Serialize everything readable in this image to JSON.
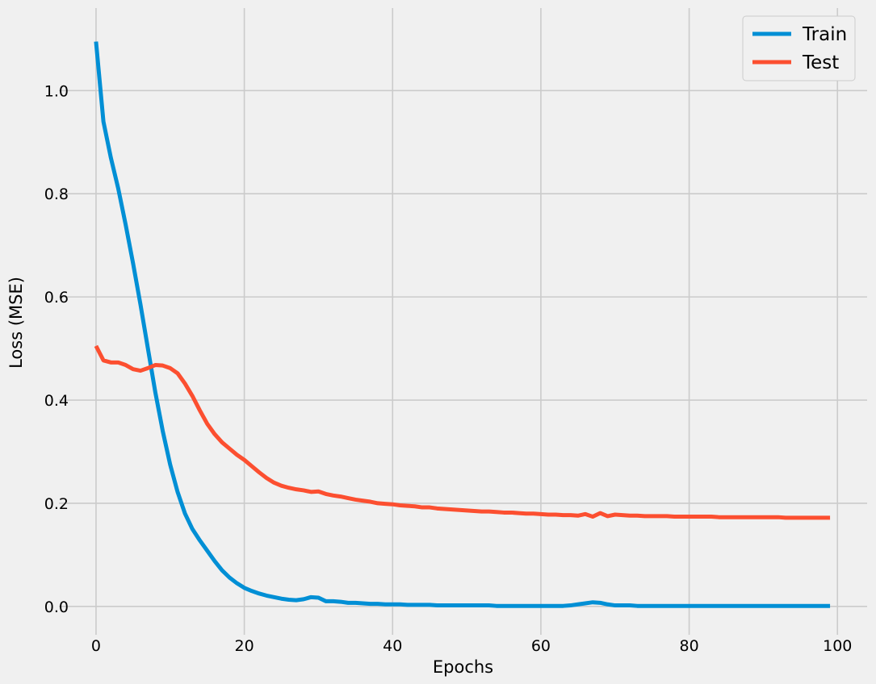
{
  "chart_data": {
    "type": "line",
    "title": "",
    "xlabel": "Epochs",
    "ylabel": "Loss (MSE)",
    "xlim": [
      -5,
      104
    ],
    "ylim": [
      -0.055,
      1.16
    ],
    "xticks": [
      0,
      20,
      40,
      60,
      80,
      100
    ],
    "xtick_labels": [
      "0",
      "20",
      "40",
      "60",
      "80",
      "100"
    ],
    "yticks": [
      0.0,
      0.2,
      0.4,
      0.6,
      0.8,
      1.0
    ],
    "ytick_labels": [
      "0.0",
      "0.2",
      "0.4",
      "0.6",
      "0.8",
      "1.0"
    ],
    "grid": true,
    "legend_position": "top-right",
    "style": "fivethirtyeight",
    "colors": {
      "background": "#f0f0f0",
      "grid": "#cbcbcb",
      "legend_bg": "#f0f0f0",
      "legend_border": "#cccccc"
    },
    "series": [
      {
        "name": "Train",
        "color": "#008fd5",
        "x": [
          0,
          1,
          2,
          3,
          4,
          5,
          6,
          7,
          8,
          9,
          10,
          11,
          12,
          13,
          14,
          15,
          16,
          17,
          18,
          19,
          20,
          21,
          22,
          23,
          24,
          25,
          26,
          27,
          28,
          29,
          30,
          31,
          32,
          33,
          34,
          35,
          36,
          37,
          38,
          39,
          40,
          41,
          42,
          43,
          44,
          45,
          46,
          47,
          48,
          49,
          50,
          51,
          52,
          53,
          54,
          55,
          56,
          57,
          58,
          59,
          60,
          61,
          62,
          63,
          64,
          65,
          66,
          67,
          68,
          69,
          70,
          71,
          72,
          73,
          74,
          75,
          76,
          77,
          78,
          79,
          80,
          81,
          82,
          83,
          84,
          85,
          86,
          87,
          88,
          89,
          90,
          91,
          92,
          93,
          94,
          95,
          96,
          97,
          98,
          99
        ],
        "y": [
          1.095,
          0.94,
          0.87,
          0.81,
          0.74,
          0.665,
          0.585,
          0.5,
          0.415,
          0.34,
          0.275,
          0.222,
          0.18,
          0.15,
          0.128,
          0.108,
          0.088,
          0.07,
          0.056,
          0.045,
          0.036,
          0.03,
          0.025,
          0.021,
          0.018,
          0.015,
          0.013,
          0.012,
          0.014,
          0.018,
          0.017,
          0.01,
          0.01,
          0.009,
          0.007,
          0.007,
          0.006,
          0.005,
          0.005,
          0.004,
          0.004,
          0.004,
          0.003,
          0.003,
          0.003,
          0.003,
          0.002,
          0.002,
          0.002,
          0.002,
          0.002,
          0.002,
          0.002,
          0.002,
          0.001,
          0.001,
          0.001,
          0.001,
          0.001,
          0.001,
          0.001,
          0.001,
          0.001,
          0.001,
          0.002,
          0.004,
          0.006,
          0.008,
          0.007,
          0.004,
          0.002,
          0.002,
          0.002,
          0.001,
          0.001,
          0.001,
          0.001,
          0.001,
          0.001,
          0.001,
          0.001,
          0.001,
          0.001,
          0.001,
          0.001,
          0.001,
          0.001,
          0.001,
          0.001,
          0.001,
          0.001,
          0.001,
          0.001,
          0.001,
          0.001,
          0.001,
          0.001,
          0.001,
          0.001,
          0.001
        ]
      },
      {
        "name": "Test",
        "color": "#fc4f30",
        "x": [
          0,
          1,
          2,
          3,
          4,
          5,
          6,
          7,
          8,
          9,
          10,
          11,
          12,
          13,
          14,
          15,
          16,
          17,
          18,
          19,
          20,
          21,
          22,
          23,
          24,
          25,
          26,
          27,
          28,
          29,
          30,
          31,
          32,
          33,
          34,
          35,
          36,
          37,
          38,
          39,
          40,
          41,
          42,
          43,
          44,
          45,
          46,
          47,
          48,
          49,
          50,
          51,
          52,
          53,
          54,
          55,
          56,
          57,
          58,
          59,
          60,
          61,
          62,
          63,
          64,
          65,
          66,
          67,
          68,
          69,
          70,
          71,
          72,
          73,
          74,
          75,
          76,
          77,
          78,
          79,
          80,
          81,
          82,
          83,
          84,
          85,
          86,
          87,
          88,
          89,
          90,
          91,
          92,
          93,
          94,
          95,
          96,
          97,
          98,
          99
        ],
        "y": [
          0.505,
          0.477,
          0.473,
          0.473,
          0.468,
          0.46,
          0.457,
          0.462,
          0.468,
          0.467,
          0.462,
          0.452,
          0.432,
          0.408,
          0.38,
          0.354,
          0.334,
          0.318,
          0.306,
          0.294,
          0.284,
          0.272,
          0.26,
          0.249,
          0.24,
          0.234,
          0.23,
          0.227,
          0.225,
          0.222,
          0.223,
          0.218,
          0.215,
          0.213,
          0.21,
          0.207,
          0.205,
          0.203,
          0.2,
          0.199,
          0.198,
          0.196,
          0.195,
          0.194,
          0.192,
          0.192,
          0.19,
          0.189,
          0.188,
          0.187,
          0.186,
          0.185,
          0.184,
          0.184,
          0.183,
          0.182,
          0.182,
          0.181,
          0.18,
          0.18,
          0.179,
          0.178,
          0.178,
          0.177,
          0.177,
          0.176,
          0.179,
          0.174,
          0.181,
          0.175,
          0.178,
          0.177,
          0.176,
          0.176,
          0.175,
          0.175,
          0.175,
          0.175,
          0.174,
          0.174,
          0.174,
          0.174,
          0.174,
          0.174,
          0.173,
          0.173,
          0.173,
          0.173,
          0.173,
          0.173,
          0.173,
          0.173,
          0.173,
          0.172,
          0.172,
          0.172,
          0.172,
          0.172,
          0.172,
          0.172
        ]
      }
    ]
  }
}
